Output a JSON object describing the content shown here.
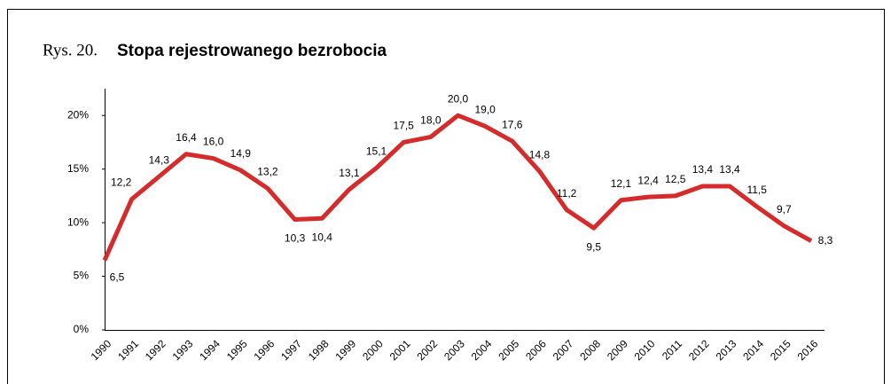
{
  "chart_data": {
    "type": "line",
    "title_prefix": "Rys. 20.",
    "title": "Stopa rejestrowanego bezrobocia",
    "categories": [
      "1990",
      "1991",
      "1992",
      "1993",
      "1994",
      "1995",
      "1996",
      "1997",
      "1998",
      "1999",
      "2000",
      "2001",
      "2002",
      "2003",
      "2004",
      "2005",
      "2006",
      "2007",
      "2008",
      "2009",
      "2010",
      "2011",
      "2012",
      "2013",
      "2014",
      "2015",
      "2016"
    ],
    "series": [
      {
        "name": "Stopa rejestrowanego bezrobocia",
        "color": "#d52b2b",
        "values": [
          6.5,
          12.2,
          14.3,
          16.4,
          16.0,
          14.9,
          13.2,
          10.3,
          10.4,
          13.1,
          15.1,
          17.5,
          18.0,
          20.0,
          19.0,
          17.6,
          14.8,
          11.2,
          9.5,
          12.1,
          12.4,
          12.5,
          13.4,
          13.4,
          11.5,
          9.7,
          8.3
        ],
        "value_labels": [
          "6,5",
          "12,2",
          "14,3",
          "16,4",
          "16,0",
          "14,9",
          "13,2",
          "10,3",
          "10,4",
          "13,1",
          "15,1",
          "17,5",
          "18,0",
          "20,0",
          "19,0",
          "17,6",
          "14,8",
          "11,2",
          "9,5",
          "12,1",
          "12,4",
          "12,5",
          "13,4",
          "13,4",
          "11,5",
          "9,7",
          "8,3"
        ]
      }
    ],
    "ylim": [
      0,
      22.5
    ],
    "yticks": [
      {
        "value": 0,
        "label": "0%"
      },
      {
        "value": 5,
        "label": "5%"
      },
      {
        "value": 10,
        "label": "10%"
      },
      {
        "value": 15,
        "label": "15%"
      },
      {
        "value": 20,
        "label": "20%"
      }
    ],
    "grid": false
  }
}
